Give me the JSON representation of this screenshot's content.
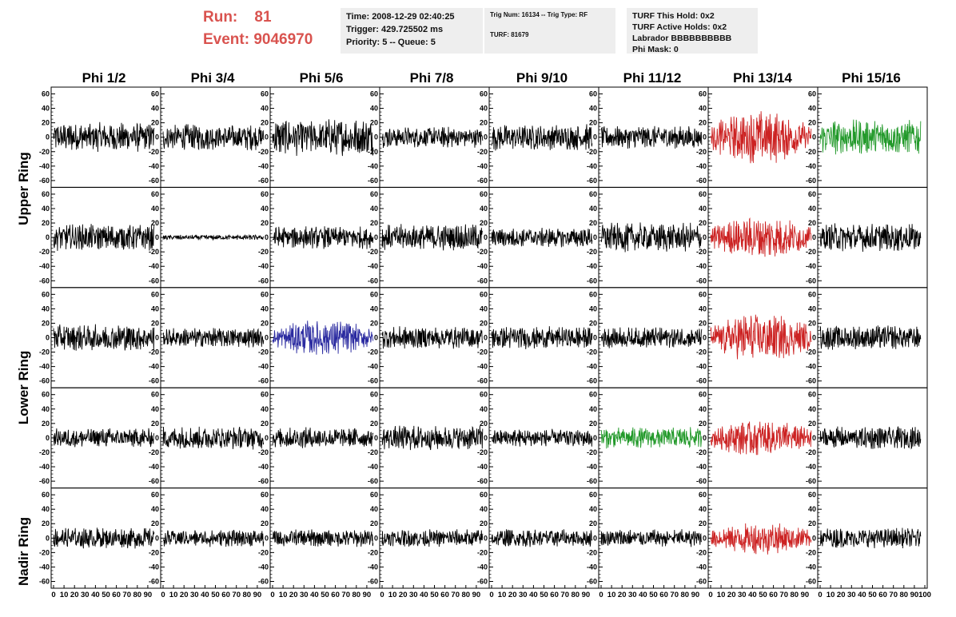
{
  "header": {
    "run_label": "Run:    81",
    "event_label": "Event: 9046970"
  },
  "info_box_1": {
    "line1": "Time: 2008-12-29 02:40:25",
    "line2": "Trigger: 429.725502 ms",
    "line3": "Priority: 5 -- Queue: 5"
  },
  "info_box_2": {
    "line1": "Trig Num: 16134 -- Trig Type: RF",
    "line2": "TURF: 81679"
  },
  "info_box_3": {
    "line1": "TURF This Hold: 0x2",
    "line2": "TURF Active Holds: 0x2",
    "line3": "Labrador BBBBBBBBBB",
    "line4": "Phi Mask: 0"
  },
  "columns": [
    "Phi 1/2",
    "Phi 3/4",
    "Phi 5/6",
    "Phi 7/8",
    "Phi 9/10",
    "Phi 11/12",
    "Phi 13/14",
    "Phi 15/16"
  ],
  "rows": [
    "Upper Ring",
    "Lower Ring",
    "Nadir Ring"
  ],
  "colors": {
    "header_red": "#d9534f",
    "trace_default": "#000000",
    "trace_red": "#cc2222",
    "trace_green": "#22992a",
    "trace_blue": "#2a2aa0"
  },
  "chart_data": {
    "type": "line",
    "panel_grid": {
      "rows": 5,
      "cols": 8
    },
    "ylim": [
      -65,
      65
    ],
    "xlim": [
      0,
      100
    ],
    "yticks": [
      -60,
      -40,
      -20,
      0,
      20,
      40,
      60
    ],
    "xticks": [
      0,
      10,
      20,
      30,
      40,
      50,
      60,
      70,
      80,
      90,
      100
    ],
    "xtick_labels": [
      "0",
      "10",
      "20",
      "30",
      "40",
      "50",
      "60",
      "70",
      "80",
      "90",
      "100"
    ],
    "trace_colors": [
      [
        "default",
        "default",
        "default",
        "default",
        "default",
        "default",
        "red",
        "green"
      ],
      [
        "default",
        "default",
        "default",
        "default",
        "default",
        "default",
        "red",
        "default"
      ],
      [
        "default",
        "default",
        "blue",
        "default",
        "default",
        "default",
        "red",
        "default"
      ],
      [
        "default",
        "default",
        "default",
        "default",
        "default",
        "green",
        "red",
        "default"
      ],
      [
        "default",
        "default",
        "default",
        "default",
        "default",
        "default",
        "red",
        "default"
      ]
    ],
    "amplitude": [
      [
        17,
        15,
        21,
        12,
        15,
        13,
        25,
        20
      ],
      [
        15,
        3,
        13,
        15,
        11,
        17,
        20,
        16
      ],
      [
        15,
        11,
        17,
        13,
        13,
        12,
        23,
        14
      ],
      [
        11,
        13,
        12,
        14,
        10,
        12,
        17,
        13
      ],
      [
        12,
        10,
        10,
        10,
        10,
        10,
        15,
        12
      ]
    ]
  }
}
